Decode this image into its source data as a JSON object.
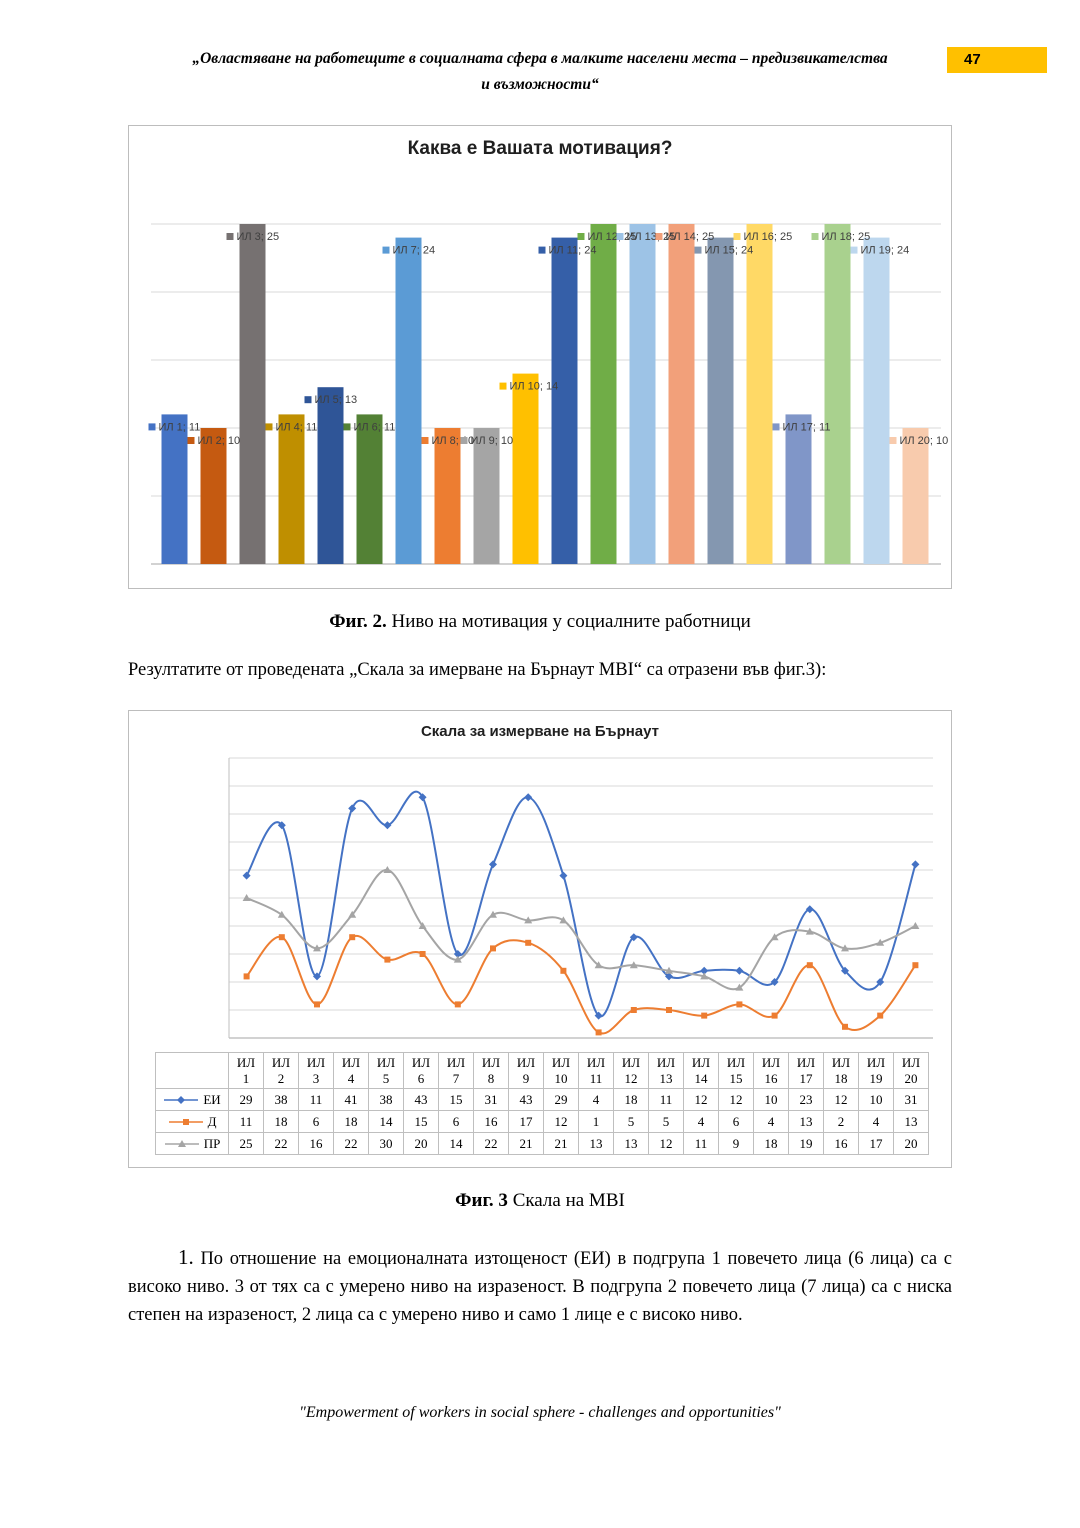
{
  "header": {
    "title_line1": "„Овластяване на работещите в социалната сфера в малките населени места – предизвикателства",
    "title_line2": "и възможности“",
    "page_number": "47",
    "highlight_color": "#FFC000"
  },
  "fig2": {
    "caption_bold": "Фиг. 2.",
    "caption_rest": " Ниво на мотивация у социалните работници"
  },
  "between_paragraph": "Резултатите от проведената „Скала за имерване на Бърнаут MBI“ са отразени във фиг.3):",
  "fig3": {
    "caption_bold": "Фиг. 3",
    "caption_rest": " Скала на MBI"
  },
  "analysis": {
    "number": "1.",
    "text": "По отношение на емоционалната изтощеност (ЕИ) в подгрупа 1 повечето лица (6 лица) са с високо ниво. 3 от тях са с умерено ниво на изразеност. В подгрупа 2 повечето лица (7 лица) са с ниска степен на изразеност, 2 лица са с умерено ниво и само 1 лице е с високо ниво."
  },
  "footer": "\"Empowerment of workers in social sphere - challenges and opportunities\"",
  "chart_data": [
    {
      "type": "bar",
      "title": "Каква е Вашата мотивация?",
      "categories": [
        "ИЛ 1",
        "ИЛ 2",
        "ИЛ 3",
        "ИЛ 4",
        "ИЛ 5",
        "ИЛ 6",
        "ИЛ 7",
        "ИЛ 8",
        "ИЛ 9",
        "ИЛ 10",
        "ИЛ 11",
        "ИЛ 12",
        "ИЛ 13",
        "ИЛ 14",
        "ИЛ 15",
        "ИЛ 16",
        "ИЛ 17",
        "ИЛ 18",
        "ИЛ 19",
        "ИЛ 20"
      ],
      "values": [
        11,
        10,
        25,
        11,
        13,
        11,
        24,
        10,
        10,
        14,
        24,
        25,
        25,
        25,
        24,
        25,
        11,
        25,
        24,
        10
      ],
      "colors": [
        "#4472C4",
        "#C55A11",
        "#767171",
        "#BF8F00",
        "#2F5597",
        "#538135",
        "#5B9BD5",
        "#ED7D31",
        "#A5A5A5",
        "#FFC000",
        "#355FA8",
        "#70AD47",
        "#9DC3E6",
        "#F2A07A",
        "#8497B0",
        "#FFD966",
        "#8096C8",
        "#A9D18E",
        "#BDD7EE",
        "#F8CBAD"
      ],
      "label_format": "{category}; {value}",
      "ylim": [
        0,
        25
      ],
      "grid_step": 5,
      "grid": "horizontal",
      "legend_position": "none"
    },
    {
      "type": "line",
      "title": "Скала за измерване на Бърнаут",
      "categories": [
        "ИЛ 1",
        "ИЛ 2",
        "ИЛ 3",
        "ИЛ 4",
        "ИЛ 5",
        "ИЛ 6",
        "ИЛ 7",
        "ИЛ 8",
        "ИЛ 9",
        "ИЛ 10",
        "ИЛ 11",
        "ИЛ 12",
        "ИЛ 13",
        "ИЛ 14",
        "ИЛ 15",
        "ИЛ 16",
        "ИЛ 17",
        "ИЛ 18",
        "ИЛ 19",
        "ИЛ 20"
      ],
      "series": [
        {
          "name": "ЕИ",
          "marker": "diamond",
          "color": "#4472C4",
          "values": [
            29,
            38,
            11,
            41,
            38,
            43,
            15,
            31,
            43,
            29,
            4,
            18,
            11,
            12,
            12,
            10,
            23,
            12,
            10,
            31
          ]
        },
        {
          "name": "Д",
          "marker": "square",
          "color": "#ED7D31",
          "values": [
            11,
            18,
            6,
            18,
            14,
            15,
            6,
            16,
            17,
            12,
            1,
            5,
            5,
            4,
            6,
            4,
            13,
            2,
            4,
            13
          ]
        },
        {
          "name": "ПР",
          "marker": "triangle",
          "color": "#A5A5A5",
          "values": [
            25,
            22,
            16,
            22,
            30,
            20,
            14,
            22,
            21,
            21,
            13,
            13,
            12,
            11,
            9,
            18,
            19,
            16,
            17,
            20
          ]
        }
      ],
      "ylim": [
        0,
        50
      ],
      "grid_step": 5,
      "grid": "horizontal",
      "smooth": true,
      "legend_position": "data-table"
    }
  ]
}
